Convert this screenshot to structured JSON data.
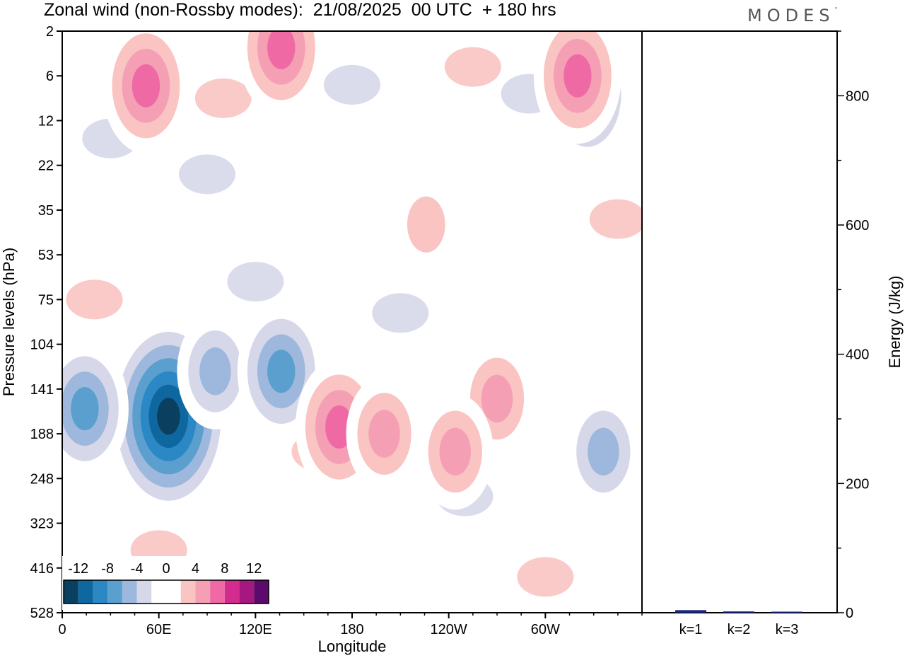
{
  "title": "Zonal wind (non-Rossby modes):  21/08/2025  00 UTC  + 180 hrs",
  "logo": {
    "text": "MODES",
    "mark": "°"
  },
  "chart_data": [
    {
      "type": "heatmap",
      "title": "Zonal wind (non-Rossby modes):  21/08/2025  00 UTC  + 180 hrs",
      "xlabel": "Longitude",
      "ylabel": "Pressure levels (hPa)",
      "x_ticks": [
        {
          "label": "0",
          "lon": 0
        },
        {
          "label": "60E",
          "lon": 60
        },
        {
          "label": "120E",
          "lon": 120
        },
        {
          "label": "180",
          "lon": 180
        },
        {
          "label": "120W",
          "lon": 240
        },
        {
          "label": "60W",
          "lon": 300
        }
      ],
      "xlim": [
        0,
        360
      ],
      "y_ticks": [
        "2",
        "6",
        "12",
        "22",
        "35",
        "53",
        "75",
        "104",
        "141",
        "188",
        "248",
        "323",
        "416",
        "528"
      ],
      "colorbar": {
        "labels": [
          "-12",
          "-8",
          "-4",
          "0",
          "4",
          "8",
          "12"
        ],
        "colors": [
          "#0b3f5f",
          "#0f67a0",
          "#2b88c4",
          "#5a9fcd",
          "#9db8dc",
          "#d6d8ea",
          "#ffffff",
          "#ffffff",
          "#f9c4c2",
          "#f59fb5",
          "#ef6aa5",
          "#d42c8e",
          "#a4187f",
          "#5c0a6b"
        ]
      },
      "features": [
        {
          "sign": "negative",
          "lon": 66,
          "level": "168",
          "peak": -13
        },
        {
          "sign": "negative",
          "lon": 14,
          "level": "160",
          "peak": -7
        },
        {
          "sign": "negative",
          "lon": 95,
          "level": "125",
          "peak": -6
        },
        {
          "sign": "negative",
          "lon": 136,
          "level": "125",
          "peak": -7
        },
        {
          "sign": "negative",
          "lon": 336,
          "level": "210",
          "peak": -6
        },
        {
          "sign": "negative",
          "lon": 326,
          "level": "8",
          "peak": -7
        },
        {
          "sign": "positive",
          "lon": 172,
          "level": "180",
          "peak": 8
        },
        {
          "sign": "positive",
          "lon": 200,
          "level": "188",
          "peak": 5
        },
        {
          "sign": "positive",
          "lon": 270,
          "level": "150",
          "peak": 6
        },
        {
          "sign": "positive",
          "lon": 244,
          "level": "210",
          "peak": 5
        },
        {
          "sign": "positive",
          "lon": 226,
          "level": "40",
          "peak": 3
        },
        {
          "sign": "positive",
          "lon": 52,
          "level": "7",
          "peak": 8
        },
        {
          "sign": "positive",
          "lon": 320,
          "level": "6",
          "peak": 7
        },
        {
          "sign": "positive",
          "lon": 136,
          "level": "3",
          "peak": 8
        }
      ]
    },
    {
      "type": "bar",
      "categories": [
        "k=1",
        "k=2",
        "k=3"
      ],
      "values": [
        4,
        2,
        1
      ],
      "ylabel": "Energy (J/kg)",
      "ylim": [
        0,
        900
      ],
      "y_ticks": [
        0,
        200,
        400,
        600,
        800
      ],
      "bar_color": "#1a237e"
    }
  ]
}
